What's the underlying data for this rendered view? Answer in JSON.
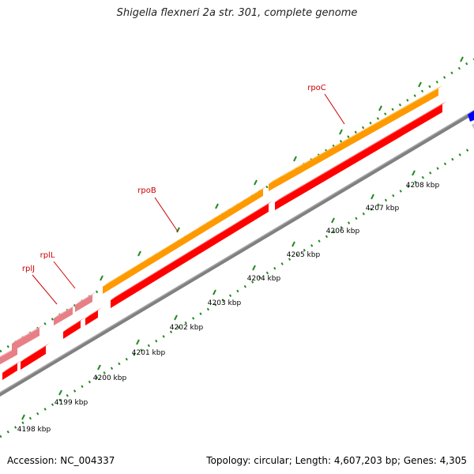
{
  "title": "Shigella flexneri 2a str. 301, complete genome",
  "footer": {
    "accession_label": "Accession:",
    "accession": "NC_004337",
    "topology_label": "Topology:",
    "topology": "circular",
    "length_label": "Length:",
    "length": "4,607,203 bp",
    "genes_label": "Genes:",
    "genes": "4,305"
  },
  "kbp_ticks": [
    {
      "kbp": 4198,
      "label": "4198 kbp"
    },
    {
      "kbp": 4199,
      "label": "4199 kbp"
    },
    {
      "kbp": 4200,
      "label": "4200 kbp"
    },
    {
      "kbp": 4201,
      "label": "4201 kbp"
    },
    {
      "kbp": 4202,
      "label": "4202 kbp"
    },
    {
      "kbp": 4203,
      "label": "4203 kbp"
    },
    {
      "kbp": 4204,
      "label": "4204 kbp"
    },
    {
      "kbp": 4205,
      "label": "4205 kbp"
    },
    {
      "kbp": 4206,
      "label": "4206 kbp"
    },
    {
      "kbp": 4207,
      "label": "4207 kbp"
    },
    {
      "kbp": 4208,
      "label": "4208 kbp"
    }
  ],
  "gene_labels": [
    {
      "id": "rplJ",
      "label": "rplJ"
    },
    {
      "id": "rplL",
      "label": "rplL"
    },
    {
      "id": "rpoB",
      "label": "rpoB"
    },
    {
      "id": "rpoC",
      "label": "rpoC"
    }
  ],
  "colors": {
    "backbone": "#808080",
    "tick_dots": "#228B22",
    "cds_forward": "#ff0000",
    "cds_highlight": "#ff9900",
    "cds_pink": "#f08080",
    "feature_blue": "#0000ff",
    "label_red": "#cc0000"
  }
}
